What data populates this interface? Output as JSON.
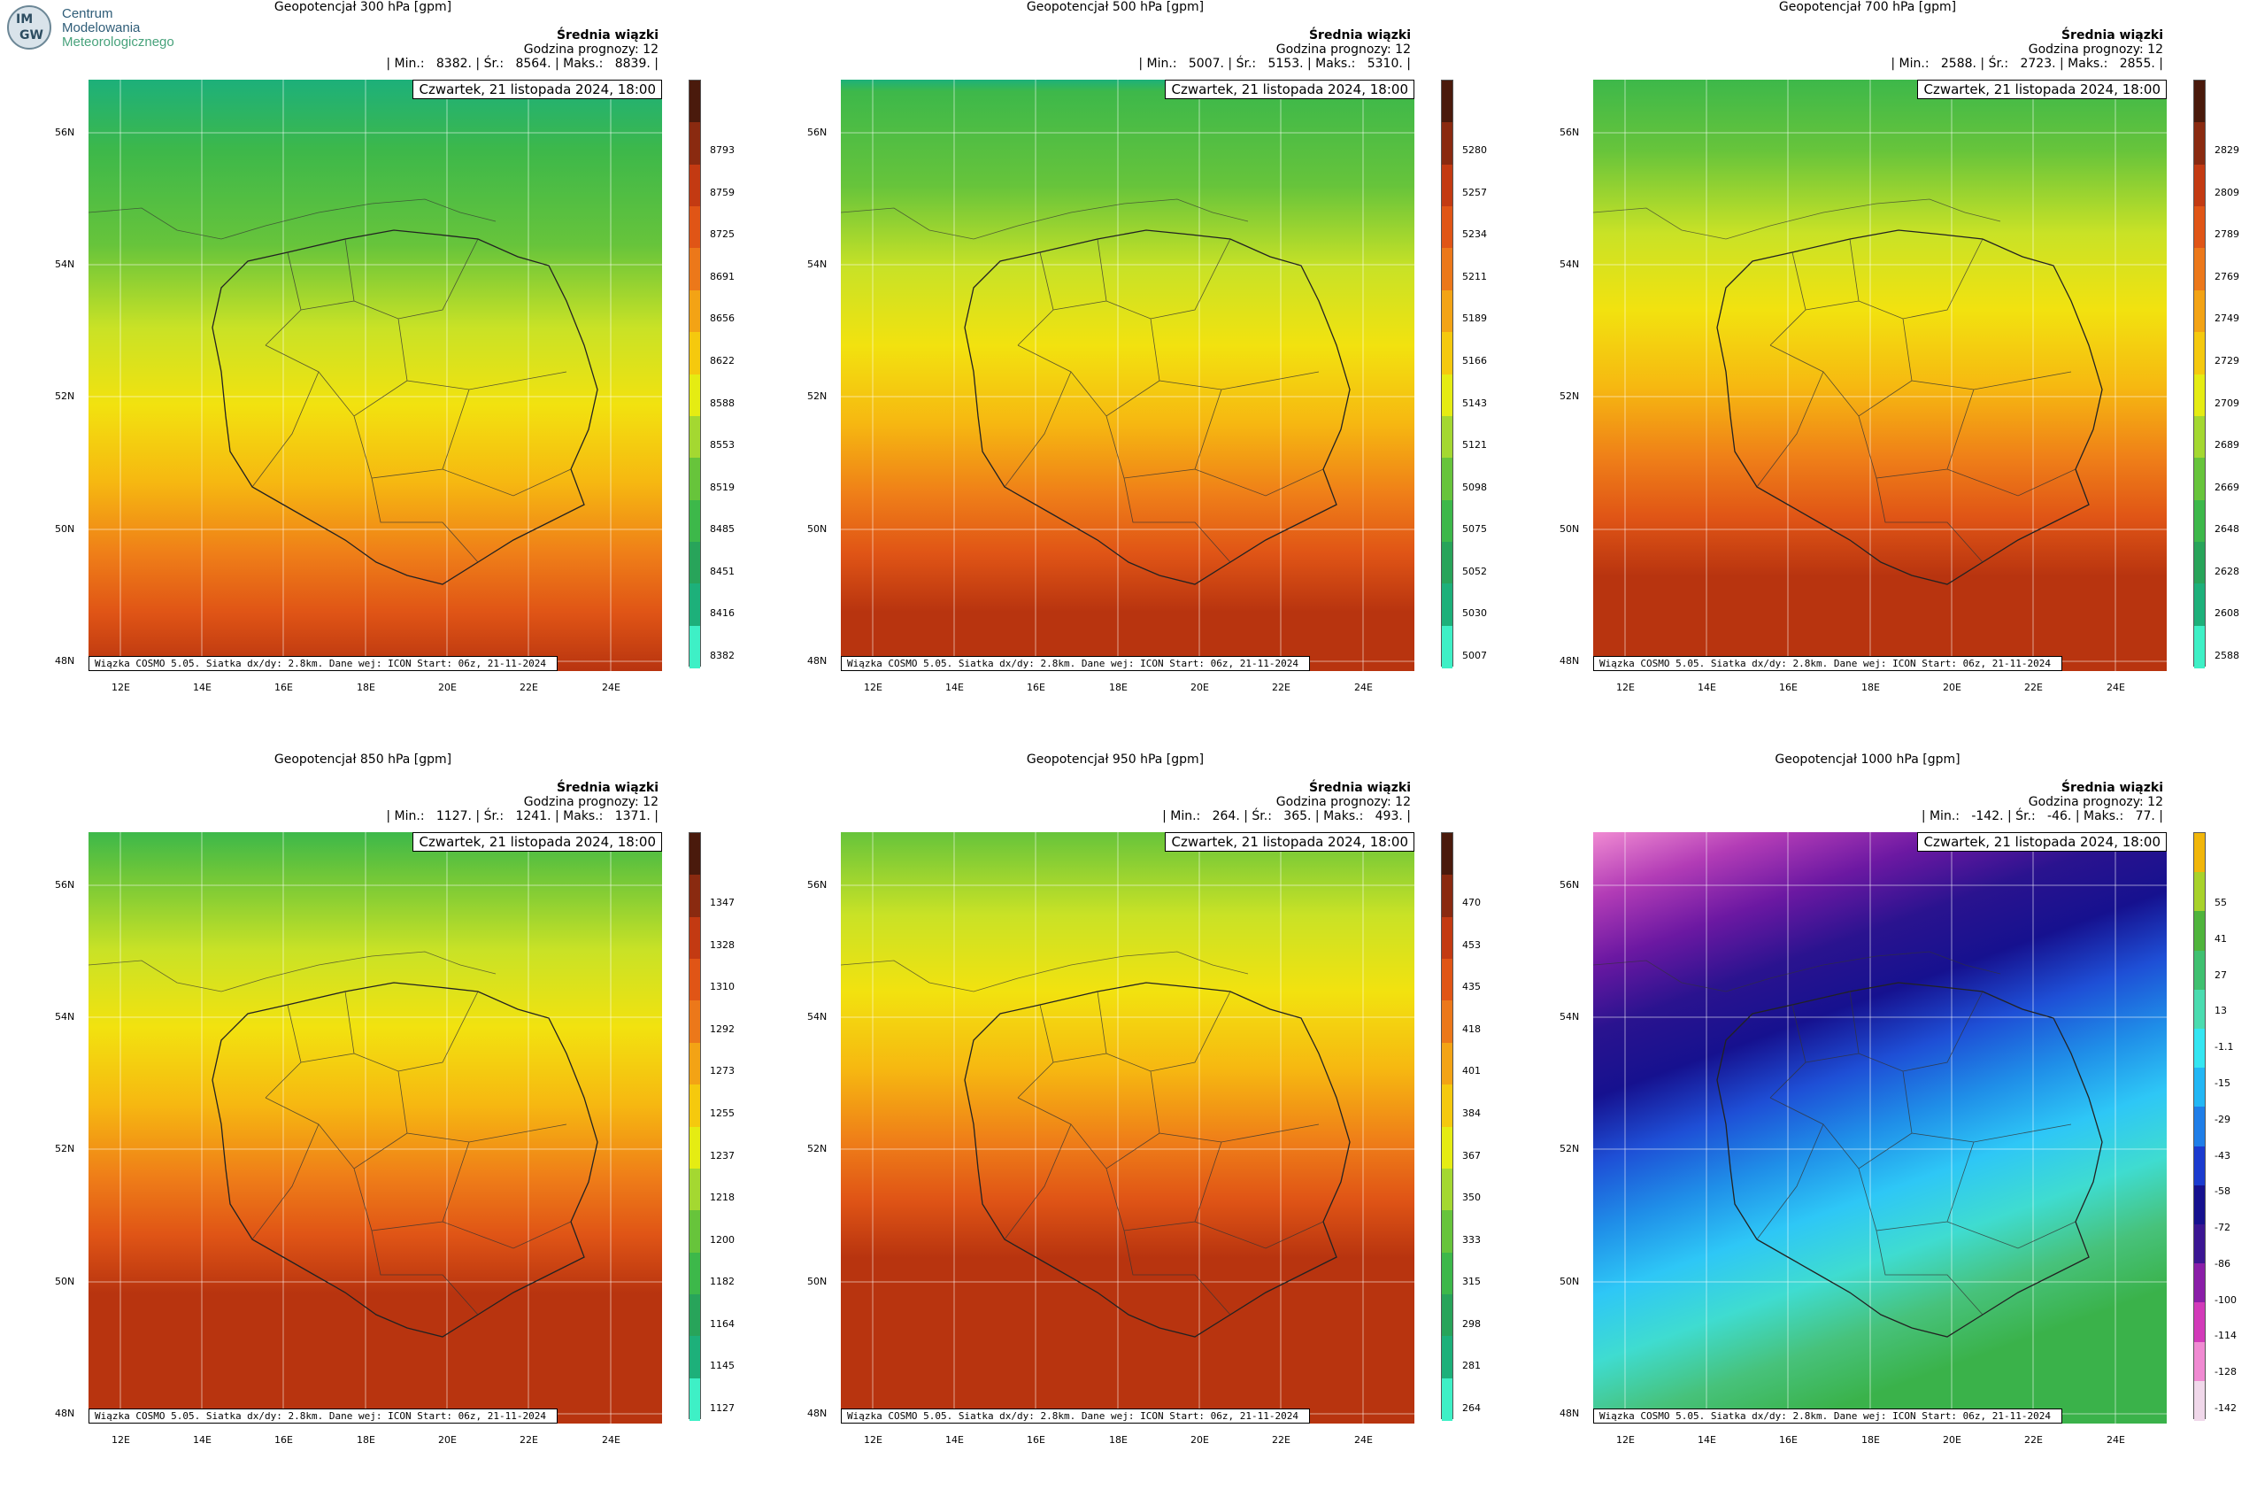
{
  "logo": {
    "mark_top": "IM",
    "mark_bottom": "GW",
    "line1": "Centrum",
    "line2": "Modelowania",
    "line3": "Meteorologicznego"
  },
  "common": {
    "subtitle": "Średnia wiązki",
    "forecast_hour": "Godzina prognozy: 12",
    "date": "Czwartek, 21 listopada 2024, 18:00",
    "footer": "Wiązka COSMO 5.05. Siatka dx/dy: 2.8km. Dane wej: ICON Start: 06z, 21-11-2024",
    "lat_labels": [
      "56N",
      "54N",
      "52N",
      "50N",
      "48N"
    ],
    "lon_labels": [
      "12E",
      "14E",
      "16E",
      "18E",
      "20E",
      "22E",
      "24E"
    ]
  },
  "panels": [
    {
      "title": "Geopotencjał 300 hPa [gpm]",
      "stats": "| Min.:   8382. | Śr.:   8564. | Maks.:   8839. |",
      "palette": "terrain",
      "ticks": [
        "8793",
        "8759",
        "8725",
        "8691",
        "8656",
        "8622",
        "8588",
        "8553",
        "8519",
        "8485",
        "8451",
        "8416",
        "8382"
      ]
    },
    {
      "title": "Geopotencjał 500 hPa [gpm]",
      "stats": "| Min.:   5007. | Śr.:   5153. | Maks.:   5310. |",
      "palette": "terrain",
      "ticks": [
        "5280",
        "5257",
        "5234",
        "5211",
        "5189",
        "5166",
        "5143",
        "5121",
        "5098",
        "5075",
        "5052",
        "5030",
        "5007"
      ]
    },
    {
      "title": "Geopotencjał 700 hPa [gpm]",
      "stats": "| Min.:   2588. | Śr.:   2723. | Maks.:   2855. |",
      "palette": "terrain",
      "ticks": [
        "2829",
        "2809",
        "2789",
        "2769",
        "2749",
        "2729",
        "2709",
        "2689",
        "2669",
        "2648",
        "2628",
        "2608",
        "2588"
      ]
    },
    {
      "title": "Geopotencjał 850 hPa [gpm]",
      "stats": "| Min.:   1127. | Śr.:   1241. | Maks.:   1371. |",
      "palette": "terrain",
      "ticks": [
        "1347",
        "1328",
        "1310",
        "1292",
        "1273",
        "1255",
        "1237",
        "1218",
        "1200",
        "1182",
        "1164",
        "1145",
        "1127"
      ]
    },
    {
      "title": "Geopotencjał 950 hPa [gpm]",
      "stats": "| Min.:   264. | Śr.:   365. | Maks.:   493. |",
      "palette": "terrain",
      "ticks": [
        "470",
        "453",
        "435",
        "418",
        "401",
        "384",
        "367",
        "350",
        "333",
        "315",
        "298",
        "281",
        "264"
      ]
    },
    {
      "title": "Geopotencjał 1000 hPa [gpm]",
      "stats": "| Min.:   -142. | Śr.:   -46. | Maks.:   77. |",
      "palette": "cool",
      "ticks": [
        "55",
        "41",
        "27",
        "13",
        "-1.1",
        "-15",
        "-29",
        "-43",
        "-58",
        "-72",
        "-86",
        "-100",
        "-114",
        "-128",
        "-142"
      ]
    }
  ]
}
